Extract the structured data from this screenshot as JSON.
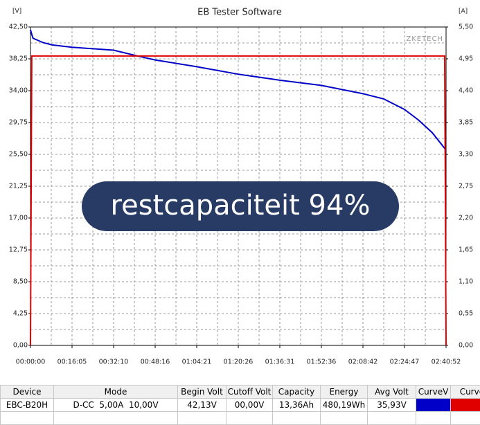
{
  "chart_data": {
    "type": "line",
    "title": "EB Tester Software",
    "y_label": "[V]",
    "y2_label": "[A]",
    "watermark": "ZKETECH",
    "x": [
      0,
      30,
      60,
      300,
      515,
      965,
      1930,
      2510,
      2895,
      3860,
      4825,
      5790,
      6755,
      7720,
      8203,
      8686,
      9008,
      9330,
      9523,
      9620,
      9652
    ],
    "series": [
      {
        "color": "#0000c8",
        "values": [
          42.13,
          41.5,
          41.0,
          40.4,
          40.1,
          39.8,
          39.4,
          38.6,
          38.1,
          37.2,
          36.2,
          35.4,
          34.7,
          33.6,
          32.9,
          31.5,
          30.1,
          28.4,
          27.0,
          26.3,
          25.9
        ]
      },
      {
        "color": "#e00000",
        "axis": "y2",
        "values": [
          0,
          5,
          5,
          5,
          5,
          5,
          5,
          5,
          5,
          5,
          5,
          5,
          5,
          5,
          5,
          5,
          5,
          5,
          5,
          5,
          0
        ]
      }
    ],
    "xlim": [
      0,
      9652
    ],
    "xticks": [
      {
        "value": 0,
        "label": "00:00:00"
      },
      {
        "value": 965,
        "label": "00:16:05"
      },
      {
        "value": 1930,
        "label": "00:32:10"
      },
      {
        "value": 2896,
        "label": "00:48:16"
      },
      {
        "value": 3861,
        "label": "01:04:21"
      },
      {
        "value": 4826,
        "label": "01:20:26"
      },
      {
        "value": 5791,
        "label": "01:36:31"
      },
      {
        "value": 6756,
        "label": "01:52:36"
      },
      {
        "value": 7722,
        "label": "02:08:42"
      },
      {
        "value": 8687,
        "label": "02:24:47"
      },
      {
        "value": 9652,
        "label": "02:40:52"
      }
    ],
    "ylim": [
      0,
      42.5
    ],
    "yticks": [
      {
        "value": 0,
        "label": "0,00"
      },
      {
        "value": 4.25,
        "label": "4,25"
      },
      {
        "value": 8.5,
        "label": "8,50"
      },
      {
        "value": 12.75,
        "label": "12,75"
      },
      {
        "value": 17,
        "label": "17,00"
      },
      {
        "value": 21.25,
        "label": "21,25"
      },
      {
        "value": 25.5,
        "label": "25,50"
      },
      {
        "value": 29.75,
        "label": "29,75"
      },
      {
        "value": 34,
        "label": "34,00"
      },
      {
        "value": 38.25,
        "label": "38,25"
      },
      {
        "value": 42.5,
        "label": "42,50"
      }
    ],
    "y2lim": [
      0,
      5.5
    ],
    "y2ticks": [
      {
        "value": 0,
        "label": "0,00"
      },
      {
        "value": 0.55,
        "label": "0,55"
      },
      {
        "value": 1.1,
        "label": "1,10"
      },
      {
        "value": 1.65,
        "label": "1,65"
      },
      {
        "value": 2.2,
        "label": "2,20"
      },
      {
        "value": 2.75,
        "label": "2,75"
      },
      {
        "value": 3.3,
        "label": "3,30"
      },
      {
        "value": 3.85,
        "label": "3,85"
      },
      {
        "value": 4.4,
        "label": "4,40"
      },
      {
        "value": 4.95,
        "label": "4,95"
      },
      {
        "value": 5.5,
        "label": "5,50"
      }
    ],
    "grid": true
  },
  "overlay": "restcapaciteit 94%",
  "table": {
    "columns": [
      "Device",
      "Mode",
      "Begin Volt",
      "Cutoff Volt",
      "Capacity",
      "Energy",
      "Avg Volt",
      "CurveV",
      "CurveA"
    ],
    "rows": [
      [
        "EBC-B20H",
        "D-CC  5,00A  10,00V",
        "42,13V",
        "00,00V",
        "13,36Ah",
        "480,19Wh",
        "35,93V"
      ]
    ]
  }
}
